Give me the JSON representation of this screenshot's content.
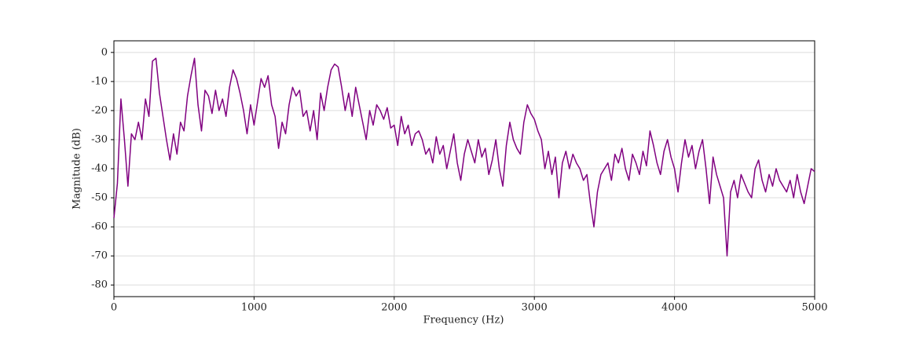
{
  "chart_data": {
    "type": "line",
    "xlabel": "Frequency (Hz)",
    "ylabel": "Magnitude (dB)",
    "color": "#800080",
    "grid": true,
    "xlim": [
      0,
      5000
    ],
    "ylim": [
      -84,
      4
    ],
    "xticks": [
      0,
      1000,
      2000,
      3000,
      4000,
      5000
    ],
    "yticks": [
      -80,
      -70,
      -60,
      -50,
      -40,
      -30,
      -20,
      -10,
      0
    ],
    "x": [
      0,
      25,
      50,
      75,
      100,
      125,
      150,
      175,
      200,
      225,
      250,
      275,
      300,
      325,
      350,
      375,
      400,
      425,
      450,
      475,
      500,
      525,
      550,
      575,
      600,
      625,
      650,
      675,
      700,
      725,
      750,
      775,
      800,
      825,
      850,
      875,
      900,
      925,
      950,
      975,
      1000,
      1025,
      1050,
      1075,
      1100,
      1125,
      1150,
      1175,
      1200,
      1225,
      1250,
      1275,
      1300,
      1325,
      1350,
      1375,
      1400,
      1425,
      1450,
      1475,
      1500,
      1525,
      1550,
      1575,
      1600,
      1625,
      1650,
      1675,
      1700,
      1725,
      1750,
      1775,
      1800,
      1825,
      1850,
      1875,
      1900,
      1925,
      1950,
      1975,
      2000,
      2025,
      2050,
      2075,
      2100,
      2125,
      2150,
      2175,
      2200,
      2225,
      2250,
      2275,
      2300,
      2325,
      2350,
      2375,
      2400,
      2425,
      2450,
      2475,
      2500,
      2525,
      2550,
      2575,
      2600,
      2625,
      2650,
      2675,
      2700,
      2725,
      2750,
      2775,
      2800,
      2825,
      2850,
      2875,
      2900,
      2925,
      2950,
      2975,
      3000,
      3025,
      3050,
      3075,
      3100,
      3125,
      3150,
      3175,
      3200,
      3225,
      3250,
      3275,
      3300,
      3325,
      3350,
      3375,
      3400,
      3425,
      3450,
      3475,
      3500,
      3525,
      3550,
      3575,
      3600,
      3625,
      3650,
      3675,
      3700,
      3725,
      3750,
      3775,
      3800,
      3825,
      3850,
      3875,
      3900,
      3925,
      3950,
      3975,
      4000,
      4025,
      4050,
      4075,
      4100,
      4125,
      4150,
      4175,
      4200,
      4225,
      4250,
      4275,
      4300,
      4325,
      4350,
      4375,
      4400,
      4425,
      4450,
      4475,
      4500,
      4525,
      4550,
      4575,
      4600,
      4625,
      4650,
      4675,
      4700,
      4725,
      4750,
      4775,
      4800,
      4825,
      4850,
      4875,
      4900,
      4925,
      4950,
      4975,
      5000
    ],
    "values": [
      -57,
      -45,
      -16,
      -30,
      -46,
      -28,
      -30,
      -24,
      -30,
      -16,
      -22,
      -3,
      -2,
      -14,
      -22,
      -30,
      -37,
      -28,
      -35,
      -24,
      -27,
      -15,
      -8,
      -2,
      -18,
      -27,
      -13,
      -15,
      -21,
      -13,
      -20,
      -16,
      -22,
      -12,
      -6,
      -9,
      -14,
      -20,
      -28,
      -18,
      -25,
      -17,
      -9,
      -12,
      -8,
      -18,
      -22,
      -33,
      -24,
      -28,
      -18,
      -12,
      -15,
      -13,
      -22,
      -20,
      -27,
      -20,
      -30,
      -14,
      -20,
      -12,
      -6,
      -4,
      -5,
      -12,
      -20,
      -14,
      -22,
      -12,
      -18,
      -24,
      -30,
      -20,
      -25,
      -18,
      -20,
      -23,
      -19,
      -26,
      -25,
      -32,
      -22,
      -28,
      -25,
      -32,
      -28,
      -27,
      -30,
      -35,
      -33,
      -38,
      -29,
      -35,
      -32,
      -40,
      -34,
      -28,
      -38,
      -44,
      -35,
      -30,
      -34,
      -38,
      -30,
      -36,
      -33,
      -42,
      -37,
      -30,
      -40,
      -46,
      -32,
      -24,
      -30,
      -33,
      -35,
      -24,
      -18,
      -21,
      -23,
      -27,
      -30,
      -40,
      -34,
      -42,
      -36,
      -50,
      -38,
      -34,
      -40,
      -35,
      -38,
      -40,
      -44,
      -42,
      -52,
      -60,
      -48,
      -42,
      -40,
      -38,
      -44,
      -35,
      -38,
      -33,
      -40,
      -44,
      -35,
      -38,
      -42,
      -34,
      -39,
      -27,
      -32,
      -38,
      -42,
      -34,
      -30,
      -36,
      -40,
      -48,
      -38,
      -30,
      -36,
      -32,
      -40,
      -34,
      -30,
      -40,
      -52,
      -36,
      -42,
      -46,
      -50,
      -70,
      -48,
      -44,
      -50,
      -42,
      -45,
      -48,
      -50,
      -40,
      -37,
      -44,
      -48,
      -42,
      -46,
      -40,
      -44,
      -46,
      -48,
      -44,
      -50,
      -42,
      -48,
      -52,
      -46,
      -40,
      -41
    ]
  }
}
